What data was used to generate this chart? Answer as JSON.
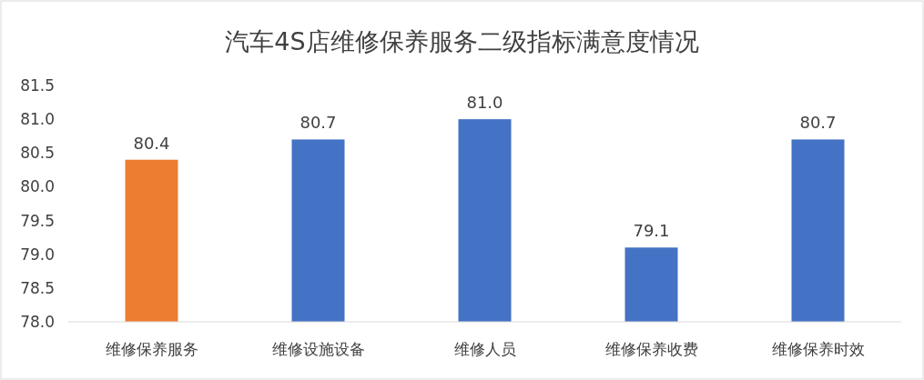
{
  "chart_data": {
    "type": "bar",
    "title": "汽车4S店维修保养服务二级指标满意度情况",
    "categories": [
      "维修保养服务",
      "维修设施设备",
      "维修人员",
      "维修保养收费",
      "维修保养时效"
    ],
    "values": [
      80.4,
      80.7,
      81.0,
      79.1,
      80.7
    ],
    "colors": [
      "#ed7d31",
      "#4472c4",
      "#4472c4",
      "#4472c4",
      "#4472c4"
    ],
    "value_labels": [
      "80.4",
      "80.7",
      "81.0",
      "79.1",
      "80.7"
    ],
    "ylim": [
      78,
      81.5
    ],
    "yticks": [
      {
        "value": 78,
        "label": "78.0"
      },
      {
        "value": 78.5,
        "label": "78.5"
      },
      {
        "value": 79,
        "label": "79.0"
      },
      {
        "value": 79.5,
        "label": "79.5"
      },
      {
        "value": 80,
        "label": "80.0"
      },
      {
        "value": 80.5,
        "label": "80.5"
      },
      {
        "value": 81,
        "label": "81.0"
      },
      {
        "value": 81.5,
        "label": "81.5"
      }
    ],
    "grid": false
  }
}
